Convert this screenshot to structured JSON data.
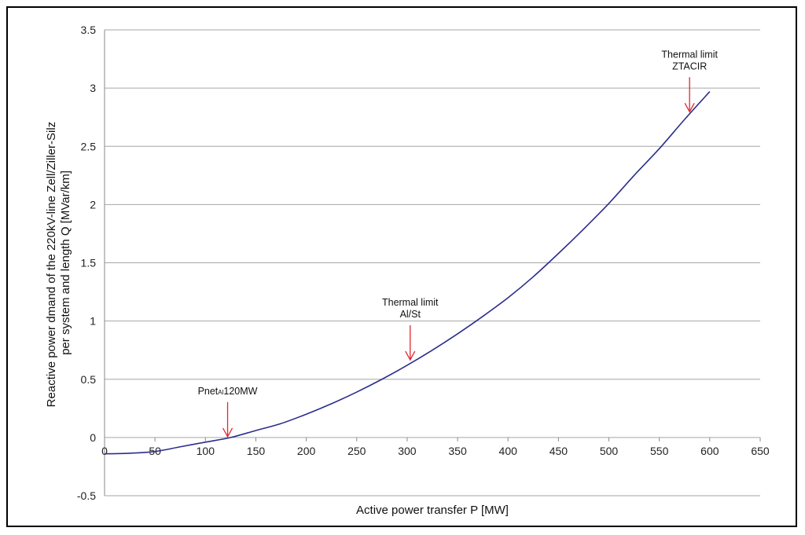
{
  "chart_data": {
    "type": "line",
    "title": "",
    "xlabel": "Active power transfer P [MW]",
    "ylabel_lines": [
      "Reactive power dmand of the 220kV-line Zell/Ziller-Silz",
      "per system and length Q [MVar/km]"
    ],
    "xlim": [
      0,
      650
    ],
    "ylim": [
      -0.5,
      3.5
    ],
    "x_ticks": [
      0,
      50,
      100,
      150,
      200,
      250,
      300,
      350,
      400,
      450,
      500,
      550,
      600,
      650
    ],
    "x_tick_labels": [
      "0",
      "50",
      "100",
      "150",
      "200",
      "250",
      "300",
      "350",
      "400",
      "450",
      "500",
      "550",
      "600",
      "650"
    ],
    "y_ticks": [
      -0.5,
      0,
      0.5,
      1,
      1.5,
      2,
      2.5,
      3,
      3.5
    ],
    "y_tick_labels": [
      "-0.5",
      "0",
      "0.5",
      "1",
      "1.5",
      "2",
      "2.5",
      "3",
      "3.5"
    ],
    "grid": "horizontal",
    "legend": "none",
    "series": [
      {
        "color": "#2b2d8c",
        "x": [
          0,
          25,
          50,
          75,
          100,
          125,
          150,
          175,
          200,
          225,
          250,
          275,
          300,
          325,
          350,
          375,
          400,
          425,
          450,
          475,
          500,
          525,
          550,
          575,
          600
        ],
        "y": [
          -0.14,
          -0.135,
          -0.12,
          -0.08,
          -0.04,
          0.0,
          0.06,
          0.12,
          0.2,
          0.29,
          0.39,
          0.5,
          0.62,
          0.75,
          0.89,
          1.04,
          1.2,
          1.38,
          1.58,
          1.79,
          2.01,
          2.25,
          2.48,
          2.73,
          2.97
        ]
      }
    ],
    "annotations": [
      {
        "text_main": "Pnet",
        "text_sub": "Al",
        "text_rest": "120MW",
        "x": 122,
        "y": 0.0
      },
      {
        "lines": [
          "Thermal limit",
          "Al/St"
        ],
        "x": 303,
        "y": 0.66
      },
      {
        "lines": [
          "Thermal limit",
          "ZTACIR"
        ],
        "x": 580,
        "y": 2.79
      }
    ],
    "arrow_color": "#e0262c",
    "grid_color": "#a6a6a6"
  }
}
